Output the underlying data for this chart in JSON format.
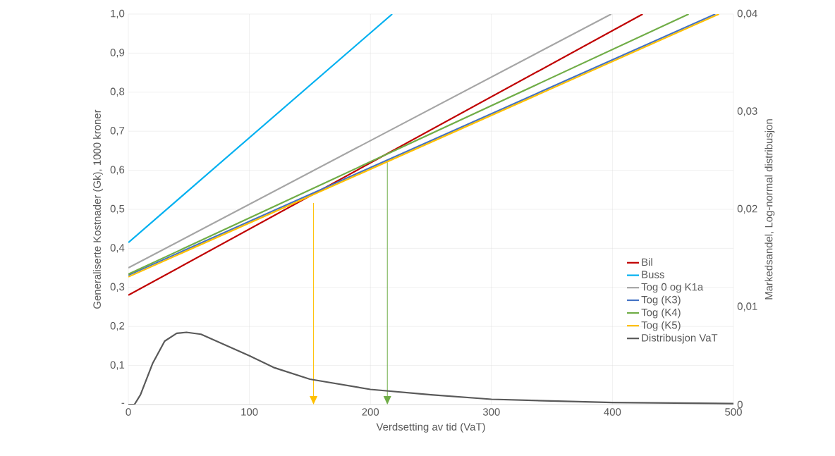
{
  "chart_data": {
    "type": "line",
    "xlabel": "Verdsetting av tid (VaT)",
    "ylabel": "Generaliserte Kostnader (Gk), 1000 kroner",
    "y2label": "Markedsandel, Log-normal distribusjon",
    "xlim": [
      0,
      500
    ],
    "xticks": [
      0,
      100,
      200,
      300,
      400,
      500
    ],
    "ylim": [
      0,
      1
    ],
    "yticks": [
      {
        "value": 0,
        "label": "-"
      },
      {
        "value": 0.1,
        "label": "0,1"
      },
      {
        "value": 0.2,
        "label": "0,2"
      },
      {
        "value": 0.3,
        "label": "0,3"
      },
      {
        "value": 0.4,
        "label": "0,4"
      },
      {
        "value": 0.5,
        "label": "0,5"
      },
      {
        "value": 0.6,
        "label": "0,6"
      },
      {
        "value": 0.7,
        "label": "0,7"
      },
      {
        "value": 0.8,
        "label": "0,8"
      },
      {
        "value": 0.9,
        "label": "0,9"
      },
      {
        "value": 1,
        "label": "1,0"
      }
    ],
    "y2lim": [
      0,
      0.04
    ],
    "y2ticks": [
      0,
      {
        "value": 0.01,
        "label": "0,01"
      },
      {
        "value": 0.02,
        "label": "0,02"
      },
      {
        "value": 0.03,
        "label": "0,03"
      },
      {
        "value": 0.04,
        "label": "0,04"
      }
    ],
    "grid": true,
    "legend": "right",
    "series": [
      {
        "name": "Bil",
        "color": "#c00000",
        "x": [
          0,
          425
        ],
        "values": [
          0.28,
          1.0
        ]
      },
      {
        "name": "Buss",
        "color": "#00b0f0",
        "x": [
          0,
          218
        ],
        "values": [
          0.415,
          1.0
        ]
      },
      {
        "name": "Tog 0 og K1a",
        "color": "#a5a5a5",
        "x": [
          0,
          399
        ],
        "values": [
          0.35,
          1.0
        ]
      },
      {
        "name": "Tog (K3)",
        "color": "#4472c4",
        "x": [
          0,
          485
        ],
        "values": [
          0.331,
          1.0
        ]
      },
      {
        "name": "Tog (K4)",
        "color": "#70ad47",
        "x": [
          0,
          463
        ],
        "values": [
          0.334,
          1.0
        ]
      },
      {
        "name": "Tog (K5)",
        "color": "#ffc000",
        "x": [
          0,
          488
        ],
        "values": [
          0.327,
          1.0
        ]
      },
      {
        "name": "Distribusjon VaT",
        "color": "#595959",
        "axis": "y2",
        "x": [
          0,
          5,
          10,
          20,
          30,
          40,
          48,
          60,
          80,
          100,
          120,
          150,
          200,
          250,
          300,
          400,
          500
        ],
        "values": [
          0,
          0,
          0.001,
          0.0042,
          0.0065,
          0.0073,
          0.0074,
          0.0072,
          0.0061,
          0.005,
          0.0038,
          0.0026,
          0.00155,
          0.001,
          0.00054,
          0.0002,
          0.0001
        ]
      }
    ],
    "ref_lines": [
      {
        "axis": "x",
        "value": 153,
        "color": "#ffc000"
      },
      {
        "axis": "x",
        "value": 214,
        "color": "#70ad47"
      }
    ]
  }
}
